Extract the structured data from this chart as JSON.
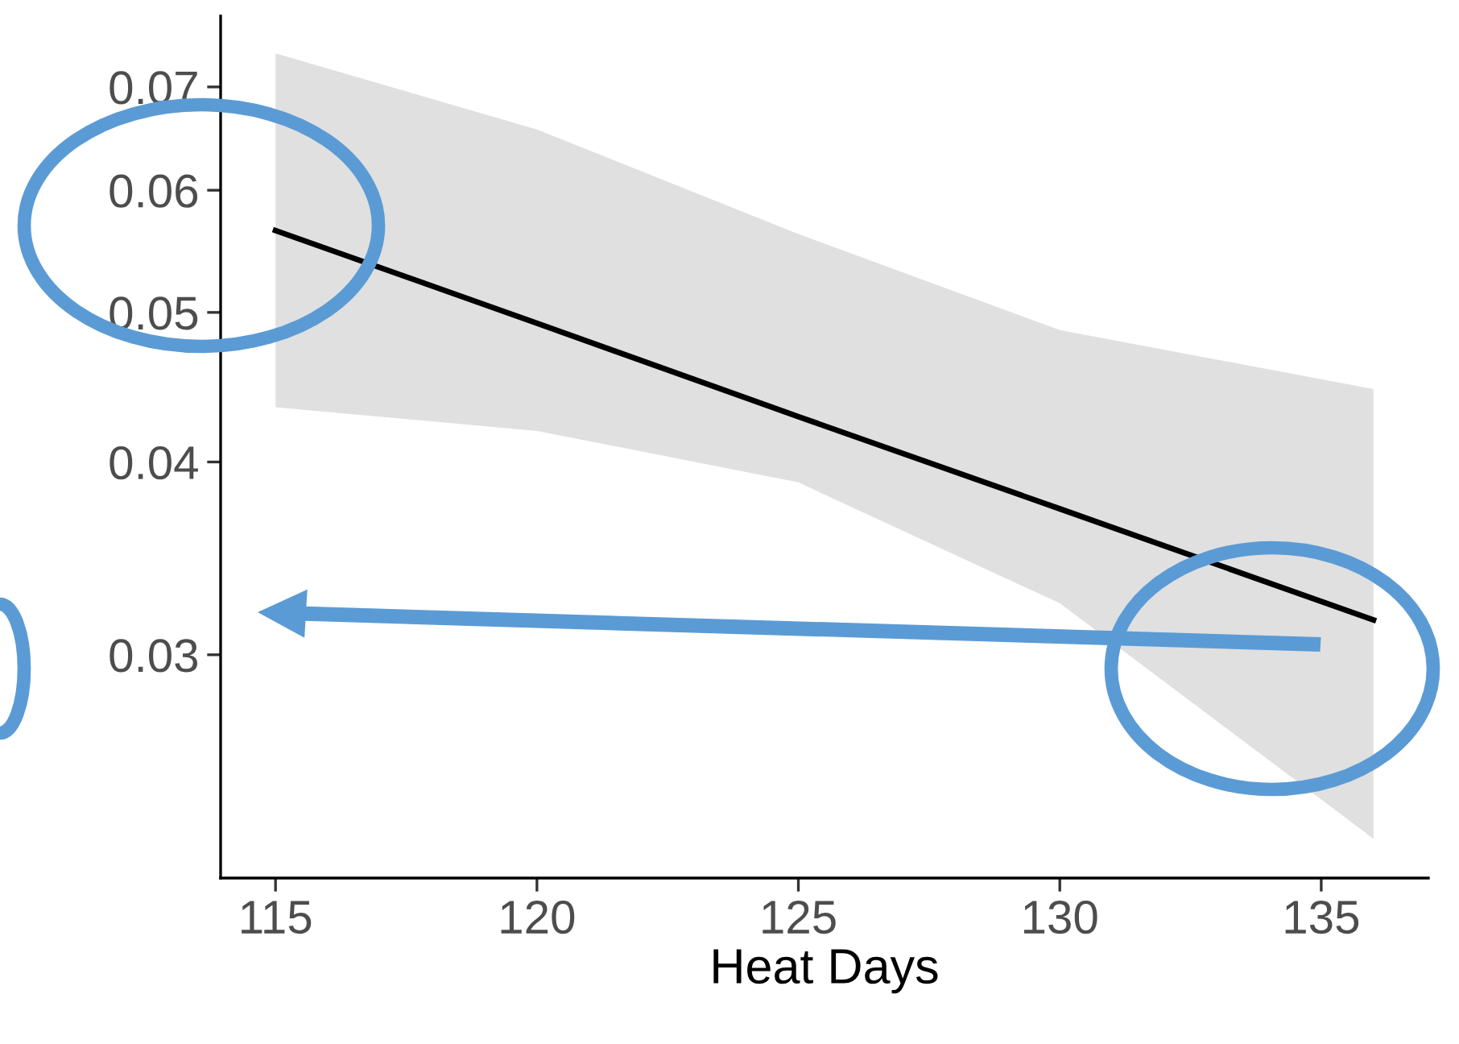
{
  "chart_data": {
    "type": "line",
    "xlabel": "Heat Days",
    "log": "y",
    "series": [
      {
        "color": "#000000",
        "x": [
          115,
          120,
          125,
          130,
          136
        ],
        "values": [
          0.0565,
          0.0492,
          0.0428,
          0.0373,
          0.0316
        ],
        "lower": [
          0.0434,
          0.0419,
          0.0388,
          0.0324,
          0.0228
        ],
        "upper": [
          0.0736,
          0.0657,
          0.0562,
          0.0487,
          0.0446
        ]
      }
    ],
    "xlim": [
      113.95,
      137.05
    ],
    "xticks": [
      115,
      120,
      125,
      130,
      135
    ],
    "ylim": [
      0.0215,
      0.0778
    ],
    "yticks": [
      {
        "value": 0.03,
        "label": "0.03"
      },
      {
        "value": 0.04,
        "label": "0.04"
      },
      {
        "value": 0.05,
        "label": "0.05"
      },
      {
        "value": 0.06,
        "label": "0.06"
      },
      {
        "value": 0.07,
        "label": "0.07"
      }
    ],
    "grid": false,
    "legend": false
  }
}
